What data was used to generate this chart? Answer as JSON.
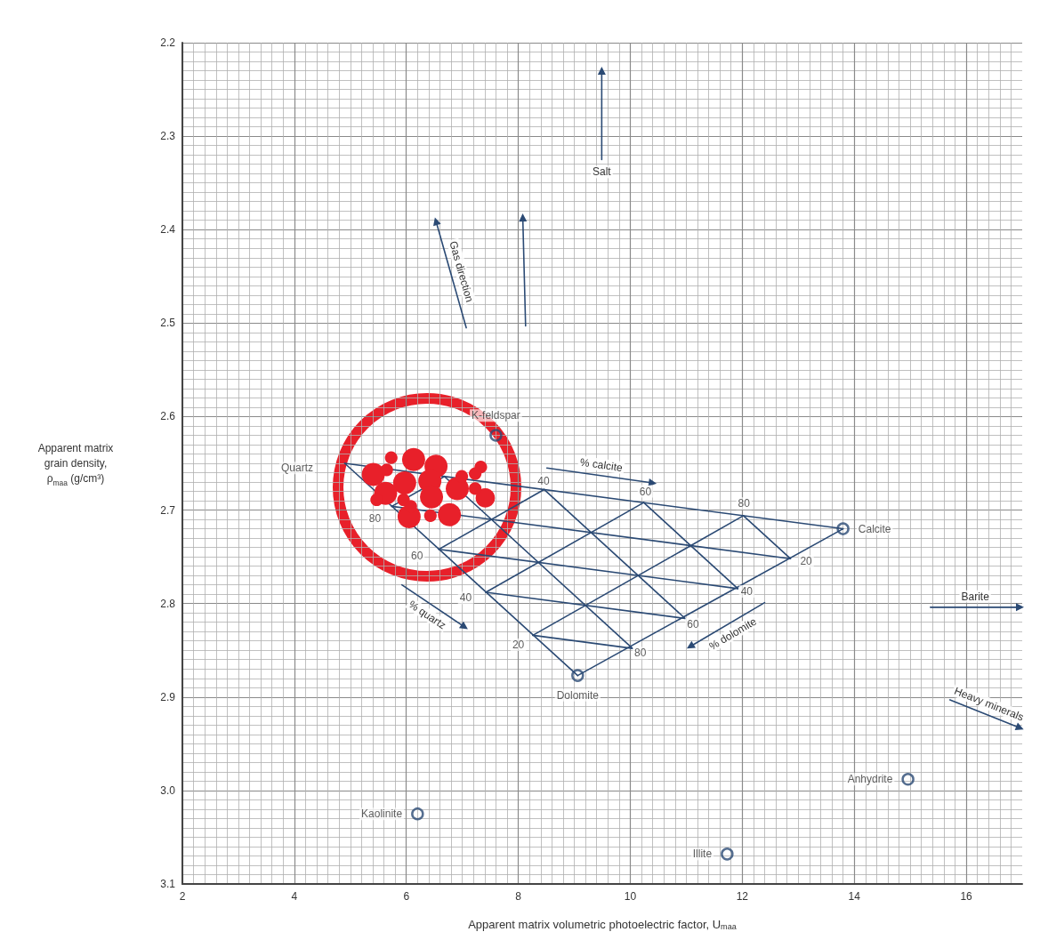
{
  "chart_data": {
    "type": "scatter",
    "xlabel": "Apparent matrix volumetric photoelectric factor, U$_{maa}$",
    "ylabel": "Apparent matrix\ngrain density,\nρ$_{maa}$ (g/cm³)",
    "xlim": [
      2,
      17
    ],
    "xticks": [
      2,
      4,
      6,
      8,
      10,
      12,
      14,
      16
    ],
    "ylim": [
      3.1,
      2.2
    ],
    "yticks": [
      2.2,
      2.3,
      2.4,
      2.5,
      2.6,
      2.7,
      2.8,
      2.9,
      {
        "value": 3,
        "label": "3.0"
      },
      3.1
    ],
    "grid": true,
    "series": [
      {
        "type": "line",
        "color": "#2b4a74",
        "marker": "none",
        "x": [
          4.9,
          13.8
        ],
        "values": [
          2.65,
          2.72
        ]
      },
      {
        "type": "line",
        "color": "#2b4a74",
        "marker": "none",
        "x": [
          13.8,
          9.06
        ],
        "values": [
          2.72,
          2.877
        ]
      },
      {
        "type": "line",
        "color": "#2b4a74",
        "marker": "none",
        "x": [
          9.06,
          4.9
        ],
        "values": [
          2.877,
          2.65
        ]
      },
      {
        "type": "line",
        "color": "#2b4a74",
        "marker": "none",
        "x": [
          5.74,
          12.86
        ],
        "values": [
          2.696,
          2.752
        ]
      },
      {
        "type": "line",
        "color": "#2b4a74",
        "marker": "none",
        "x": [
          6.58,
          11.92
        ],
        "values": [
          2.742,
          2.784
        ]
      },
      {
        "type": "line",
        "color": "#2b4a74",
        "marker": "none",
        "x": [
          7.42,
          10.98
        ],
        "values": [
          2.788,
          2.816
        ]
      },
      {
        "type": "line",
        "color": "#2b4a74",
        "marker": "none",
        "x": [
          8.26,
          10.04
        ],
        "values": [
          2.834,
          2.848
        ]
      },
      {
        "type": "line",
        "color": "#2b4a74",
        "marker": "none",
        "x": [
          6.68,
          10.04
        ],
        "values": [
          2.664,
          2.848
        ]
      },
      {
        "type": "line",
        "color": "#2b4a74",
        "marker": "none",
        "x": [
          8.46,
          10.98
        ],
        "values": [
          2.678,
          2.816
        ]
      },
      {
        "type": "line",
        "color": "#2b4a74",
        "marker": "none",
        "x": [
          10.24,
          11.92
        ],
        "values": [
          2.692,
          2.784
        ]
      },
      {
        "type": "line",
        "color": "#2b4a74",
        "marker": "none",
        "x": [
          12.02,
          12.86
        ],
        "values": [
          2.706,
          2.752
        ]
      },
      {
        "type": "line",
        "color": "#2b4a74",
        "marker": "none",
        "x": [
          6.68,
          5.74
        ],
        "values": [
          2.664,
          2.696
        ]
      },
      {
        "type": "line",
        "color": "#2b4a74",
        "marker": "none",
        "x": [
          8.46,
          6.58
        ],
        "values": [
          2.678,
          2.742
        ]
      },
      {
        "type": "line",
        "color": "#2b4a74",
        "marker": "none",
        "x": [
          10.24,
          7.42
        ],
        "values": [
          2.692,
          2.788
        ]
      },
      {
        "type": "line",
        "color": "#2b4a74",
        "marker": "none",
        "x": [
          12.02,
          8.26
        ],
        "values": [
          2.706,
          2.834
        ]
      },
      {
        "type": "line",
        "name": "Salt",
        "color": "#2b4a74",
        "marker": "triangle",
        "x": [
          9.49,
          9.49
        ],
        "values": [
          2.325,
          2.23
        ]
      },
      {
        "type": "line",
        "name": "Gas direction",
        "color": "#2b4a74",
        "marker": "triangle",
        "x": [
          7.07,
          6.53
        ],
        "values": [
          2.505,
          2.391
        ]
      },
      {
        "type": "line",
        "color": "#2b4a74",
        "marker": "triangle",
        "x": [
          8.13,
          8.08
        ],
        "values": [
          2.503,
          2.387
        ]
      },
      {
        "type": "line",
        "name": "Barite",
        "color": "#2b4a74",
        "marker": "triangle",
        "x": [
          15.36,
          16.96
        ],
        "values": [
          2.804,
          2.804
        ]
      },
      {
        "type": "line",
        "name": "Heavy minerals",
        "color": "#2b4a74",
        "marker": "triangle",
        "x": [
          15.71,
          16.96
        ],
        "values": [
          2.903,
          2.933
        ]
      },
      {
        "type": "line",
        "name": "% calcite",
        "color": "#2b4a74",
        "marker": "triangle",
        "x": [
          8.51,
          10.4
        ],
        "values": [
          2.655,
          2.671
        ]
      },
      {
        "type": "line",
        "name": "% dolomite",
        "color": "#2b4a74",
        "marker": "triangle",
        "x": [
          12.4,
          11.07
        ],
        "values": [
          2.799,
          2.846
        ]
      },
      {
        "type": "line",
        "name": "% quartz",
        "color": "#2b4a74",
        "marker": "triangle",
        "x": [
          5.92,
          7.04
        ],
        "values": [
          2.78,
          2.825
        ]
      },
      {
        "type": "scatter",
        "name": "K-feldspar",
        "color": "#2b4a74",
        "marker": "circle",
        "x": [
          7.6
        ],
        "values": [
          2.62
        ]
      },
      {
        "type": "scatter",
        "name": "Calcite",
        "color": "#2b4a74",
        "marker": "circle",
        "x": [
          13.8
        ],
        "values": [
          2.72
        ]
      },
      {
        "type": "scatter",
        "name": "Dolomite",
        "color": "#2b4a74",
        "marker": "circle",
        "x": [
          9.06
        ],
        "values": [
          2.877
        ]
      },
      {
        "type": "scatter",
        "name": "Kaolinite",
        "color": "#2b4a74",
        "marker": "circle",
        "x": [
          6.2
        ],
        "values": [
          3.025
        ]
      },
      {
        "type": "scatter",
        "name": "Illite",
        "color": "#2b4a74",
        "marker": "circle",
        "x": [
          11.73
        ],
        "values": [
          3.068
        ]
      },
      {
        "type": "scatter",
        "name": "Anhydrite",
        "color": "#2b4a74",
        "marker": "circle",
        "x": [
          14.96
        ],
        "values": [
          2.988
        ]
      },
      {
        "type": "bubble",
        "color": "#e8202a",
        "x": [
          5.73,
          6.13,
          6.53,
          5.41,
          5.65,
          5.97,
          6.42,
          6.91,
          5.63,
          6.45,
          7.41,
          6.05,
          6.77,
          6.43,
          5.47,
          5.95,
          6.08,
          6.99,
          7.33,
          7.23,
          7.23
        ],
        "values": [
          2.644,
          2.646,
          2.653,
          2.662,
          2.657,
          2.671,
          2.669,
          2.677,
          2.682,
          2.686,
          2.687,
          2.707,
          2.705,
          2.706,
          2.689,
          2.689,
          2.696,
          2.664,
          2.654,
          2.661,
          2.677
        ],
        "sizes": [
          0.3,
          1,
          1,
          1,
          0.3,
          1,
          1,
          1,
          1,
          1,
          0.7,
          1,
          1,
          0.3,
          0.3,
          0.3,
          0.3,
          0.3,
          0.3,
          0.3,
          0.3
        ]
      }
    ],
    "annotations": [
      {
        "text": "Quartz",
        "x": 4.05,
        "y": 2.655
      },
      {
        "text": "40",
        "x": 8.45,
        "y": 2.669
      },
      {
        "text": "60",
        "x": 10.27,
        "y": 2.68
      },
      {
        "text": "80",
        "x": 12.03,
        "y": 2.693
      },
      {
        "text": "80",
        "x": 5.44,
        "y": 2.709
      },
      {
        "text": "60",
        "x": 6.19,
        "y": 2.749
      },
      {
        "text": "40",
        "x": 7.06,
        "y": 2.794
      },
      {
        "text": "20",
        "x": 8.0,
        "y": 2.844
      },
      {
        "text": "20",
        "x": 13.14,
        "y": 2.755
      },
      {
        "text": "40",
        "x": 12.08,
        "y": 2.787
      },
      {
        "text": "60",
        "x": 11.12,
        "y": 2.822
      },
      {
        "text": "80",
        "x": 10.18,
        "y": 2.853
      }
    ]
  }
}
